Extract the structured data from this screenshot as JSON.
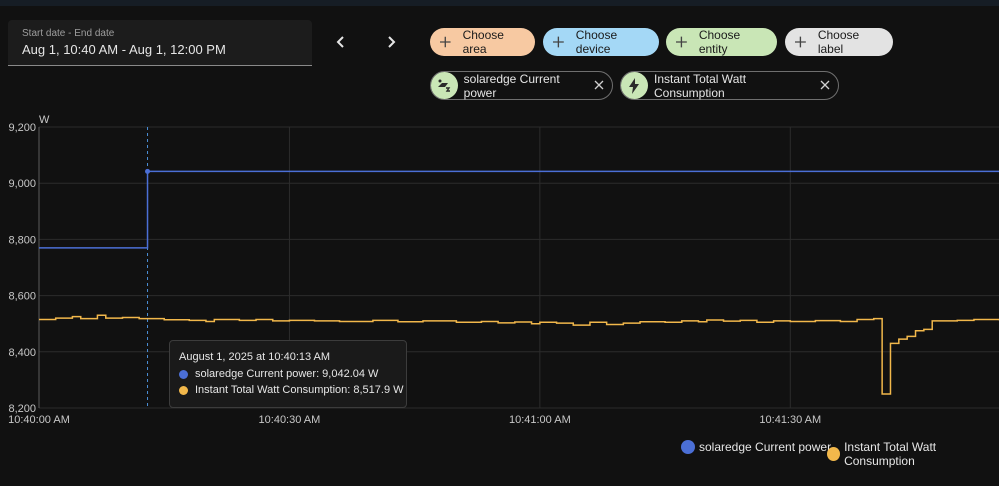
{
  "date_range": {
    "label": "Start date - End date",
    "value": "Aug 1, 10:40 AM - Aug 1, 12:00 PM"
  },
  "nav": {
    "prev_icon": "chevron-left-icon",
    "next_icon": "chevron-right-icon"
  },
  "target_chips": [
    {
      "label": "Choose area",
      "icon": "plus-icon",
      "color": "#f7c9a2"
    },
    {
      "label": "Choose device",
      "icon": "plus-icon",
      "color": "#a4d8f6"
    },
    {
      "label": "Choose entity",
      "icon": "plus-icon",
      "color": "#c9e6b6"
    },
    {
      "label": "Choose label",
      "icon": "plus-icon",
      "color": "#e3e3e3"
    }
  ],
  "selected_entities": [
    {
      "label": "solaredge Current power",
      "icon": "solar-power-icon"
    },
    {
      "label": "Instant Total Watt Consumption",
      "icon": "lightning-bolt-icon"
    }
  ],
  "tooltip": {
    "title": "August 1, 2025 at 10:40:13 AM",
    "rows": [
      "solaredge Current power: 9,042.04 W",
      "Instant Total Watt Consumption: 8,517.9 W"
    ]
  },
  "chart_data": {
    "type": "line",
    "ylabel": "W",
    "ylim": [
      8200,
      9200
    ],
    "y_ticks": [
      "9,200",
      "9,000",
      "8,800",
      "8,600",
      "8,400",
      "8,200"
    ],
    "y_tick_values": [
      9200,
      9000,
      8800,
      8600,
      8400,
      8200
    ],
    "x_ticks": [
      "10:40:00 AM",
      "10:40:30 AM",
      "10:41:00 AM",
      "10:41:30 AM"
    ],
    "x_tick_seconds": [
      0,
      30,
      60,
      90
    ],
    "xlim_seconds": [
      0,
      115
    ],
    "hover_seconds": 13,
    "grid": true,
    "legend_position": "bottom-right",
    "series": [
      {
        "name": "solaredge Current power",
        "color": "#4b6fd6",
        "step": true,
        "points": [
          [
            0,
            8770
          ],
          [
            13,
            8770
          ],
          [
            13,
            9042.04
          ],
          [
            115,
            9042.04
          ]
        ]
      },
      {
        "name": "Instant Total Watt Consumption",
        "color": "#f2b84b",
        "step": true,
        "points": [
          [
            0,
            8515
          ],
          [
            2,
            8520
          ],
          [
            4,
            8525
          ],
          [
            5,
            8518
          ],
          [
            7,
            8530
          ],
          [
            8,
            8520
          ],
          [
            10,
            8522
          ],
          [
            12,
            8518
          ],
          [
            13,
            8517.9
          ],
          [
            15,
            8514
          ],
          [
            18,
            8512
          ],
          [
            20,
            8508
          ],
          [
            21,
            8515
          ],
          [
            24,
            8512
          ],
          [
            26,
            8515
          ],
          [
            28,
            8510
          ],
          [
            30,
            8512
          ],
          [
            33,
            8510
          ],
          [
            36,
            8508
          ],
          [
            40,
            8512
          ],
          [
            43,
            8507
          ],
          [
            46,
            8510
          ],
          [
            50,
            8505
          ],
          [
            53,
            8508
          ],
          [
            55,
            8503
          ],
          [
            57,
            8506
          ],
          [
            59,
            8500
          ],
          [
            60,
            8505
          ],
          [
            62,
            8502
          ],
          [
            64,
            8495
          ],
          [
            66,
            8505
          ],
          [
            68,
            8497
          ],
          [
            70,
            8502
          ],
          [
            72,
            8507
          ],
          [
            75,
            8505
          ],
          [
            77,
            8510
          ],
          [
            79,
            8507
          ],
          [
            80,
            8513
          ],
          [
            82,
            8509
          ],
          [
            84,
            8512
          ],
          [
            86,
            8505
          ],
          [
            88,
            8510
          ],
          [
            90,
            8508
          ],
          [
            93,
            8511
          ],
          [
            96,
            8508
          ],
          [
            98,
            8515
          ],
          [
            100,
            8518
          ],
          [
            101,
            8250
          ],
          [
            102,
            8430
          ],
          [
            103,
            8445
          ],
          [
            104,
            8455
          ],
          [
            105,
            8475
          ],
          [
            106,
            8480
          ],
          [
            107,
            8510
          ],
          [
            110,
            8512
          ],
          [
            112,
            8515
          ],
          [
            115,
            8512
          ]
        ]
      }
    ]
  }
}
